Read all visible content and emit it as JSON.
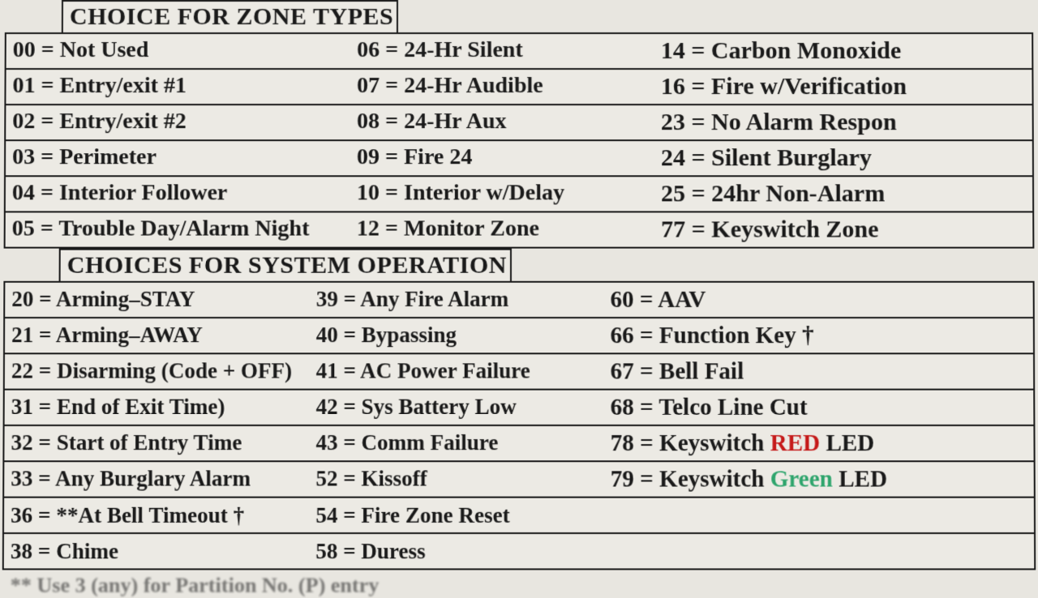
{
  "section1": {
    "title": "CHOICE FOR ZONE TYPES",
    "rows": [
      {
        "c1": "00 = Not Used",
        "c2": "06 = 24-Hr Silent",
        "c3": "14 = Carbon Monoxide"
      },
      {
        "c1": "01 = Entry/exit #1",
        "c2": "07 = 24-Hr Audible",
        "c3": "16 = Fire w/Verification"
      },
      {
        "c1": "02 = Entry/exit #2",
        "c2": "08 = 24-Hr Aux",
        "c3": "23 = No Alarm Respon"
      },
      {
        "c1": "03 = Perimeter",
        "c2": "09 = Fire 24",
        "c3": "24 = Silent Burglary"
      },
      {
        "c1": "04 = Interior Follower",
        "c2": "10 = Interior w/Delay",
        "c3": "25 = 24hr Non-Alarm"
      },
      {
        "c1": "05 = Trouble Day/Alarm Night",
        "c2": "12 = Monitor Zone",
        "c3": "77 = Keyswitch Zone"
      }
    ]
  },
  "section2": {
    "title": "CHOICES FOR SYSTEM OPERATION",
    "rows": [
      {
        "c1": "20 = Arming–STAY",
        "c2": "39 = Any Fire Alarm",
        "c3": "60 = AAV"
      },
      {
        "c1": "21 = Arming–AWAY",
        "c2": "40 = Bypassing",
        "c3": "66 = Function Key †"
      },
      {
        "c1": "22 = Disarming (Code + OFF)",
        "c2": "41 = AC Power Failure",
        "c3": "67 = Bell Fail"
      },
      {
        "c1": "31 = End of Exit Time)",
        "c2": "42 = Sys Battery Low",
        "c3": "68 = Telco Line Cut"
      },
      {
        "c1": "32 = Start of Entry Time",
        "c2": "43 = Comm Failure",
        "c3_pre": "78 = Keyswitch ",
        "c3_color": "RED",
        "c3_class": "red",
        "c3_post": " LED"
      },
      {
        "c1": "33 = Any Burglary Alarm",
        "c2": "52 = Kissoff",
        "c3_pre": "79 = Keyswitch ",
        "c3_color": "Green",
        "c3_class": "green",
        "c3_post": " LED"
      },
      {
        "c1": "36 = **At Bell Timeout †",
        "c2": "54 = Fire Zone Reset",
        "c3": ""
      },
      {
        "c1": "38 = Chime",
        "c2": "58 = Duress",
        "c3": ""
      }
    ]
  },
  "footnote": "** Use 3 (any) for Partition No. (P) entry"
}
